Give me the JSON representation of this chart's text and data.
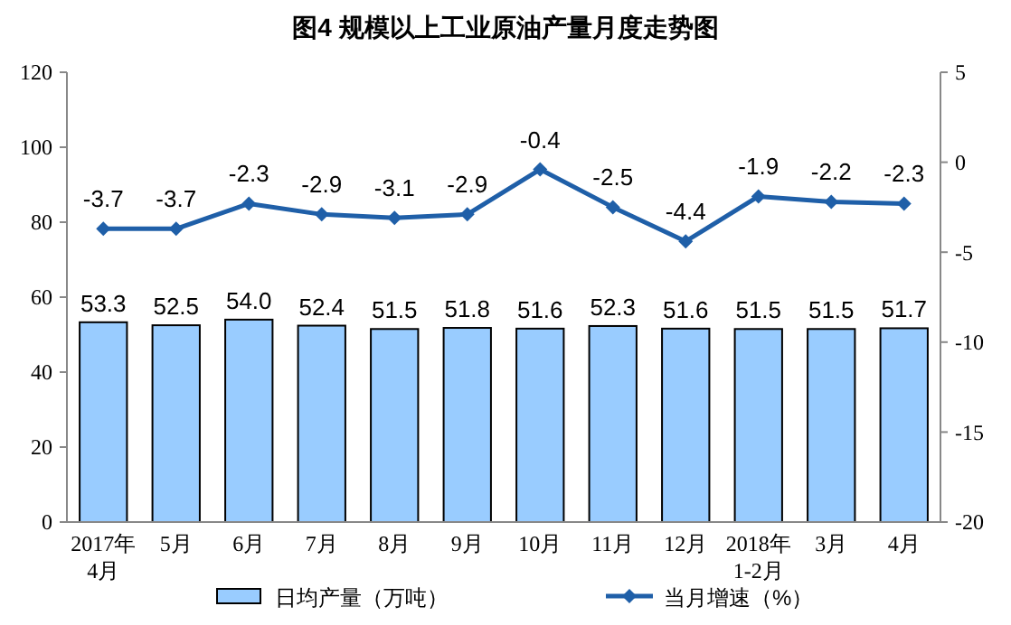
{
  "chart_data": {
    "type": "bar",
    "title": "图4  规模以上工业原油产量月度走势图",
    "categories": [
      "2017年4月",
      "5月",
      "6月",
      "7月",
      "8月",
      "9月",
      "10月",
      "11月",
      "12月",
      "2018年1-2月",
      "3月",
      "4月"
    ],
    "series": [
      {
        "name": "日均产量（万吨）",
        "color": "#99ccff",
        "values": [
          53.3,
          52.5,
          54.0,
          52.4,
          51.5,
          51.8,
          51.6,
          52.3,
          51.6,
          51.5,
          51.5,
          51.7
        ],
        "value_labels": [
          "53.3",
          "52.5",
          "54.0",
          "52.4",
          "51.5",
          "51.8",
          "51.6",
          "52.3",
          "51.6",
          "51.5",
          "51.5",
          "51.7"
        ]
      },
      {
        "name": "当月增速（%）",
        "type": "line",
        "axis": "y2",
        "color": "#1f5fa8",
        "marker": "diamond",
        "values": [
          -3.7,
          -3.7,
          -2.3,
          -2.9,
          -3.1,
          -2.9,
          -0.4,
          -2.5,
          -4.4,
          -1.9,
          -2.2,
          -2.3
        ]
      }
    ],
    "data_labels": true,
    "ylim": [
      0,
      120
    ],
    "yticks": [
      0,
      20,
      40,
      60,
      80,
      100,
      120
    ],
    "y2lim": [
      -20,
      5
    ],
    "y2ticks": [
      -20,
      -15,
      -10,
      -5,
      0,
      5
    ],
    "grid": false,
    "legend": "bottom"
  }
}
